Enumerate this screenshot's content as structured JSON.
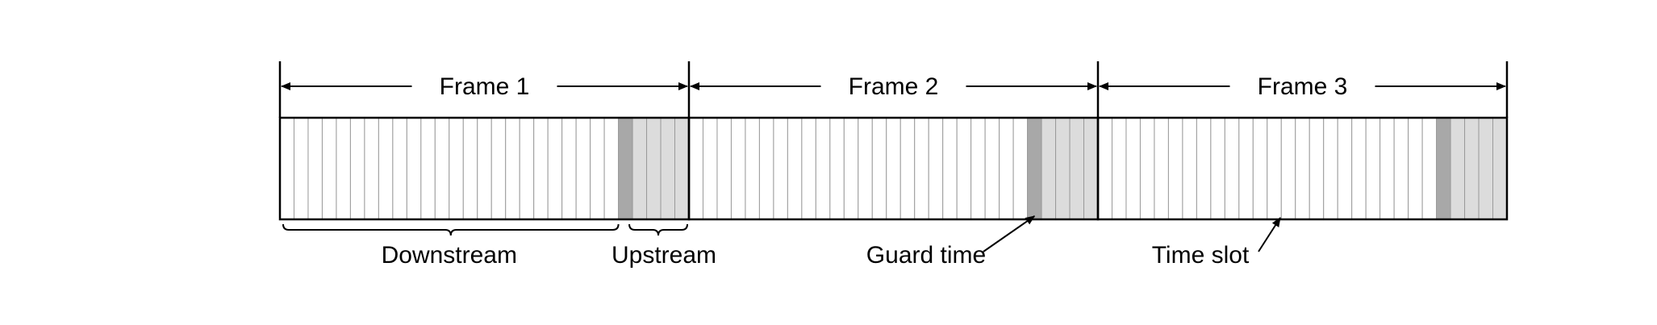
{
  "frames": [
    {
      "label": "Frame 1"
    },
    {
      "label": "Frame 2"
    },
    {
      "label": "Frame 3"
    }
  ],
  "slots": {
    "downstream_per_frame": 24,
    "guard_per_frame": 1,
    "upstream_per_frame": 4
  },
  "labels": {
    "downstream": "Downstream",
    "upstream": "Upstream",
    "guard_time": "Guard time",
    "time_slot": "Time slot"
  },
  "colors": {
    "line": "#000000",
    "slot_divider": "#9a9a9a",
    "downstream_fill": "#ffffff",
    "guard_fill": "#a8a8a8",
    "upstream_fill": "#dcdcdc"
  }
}
